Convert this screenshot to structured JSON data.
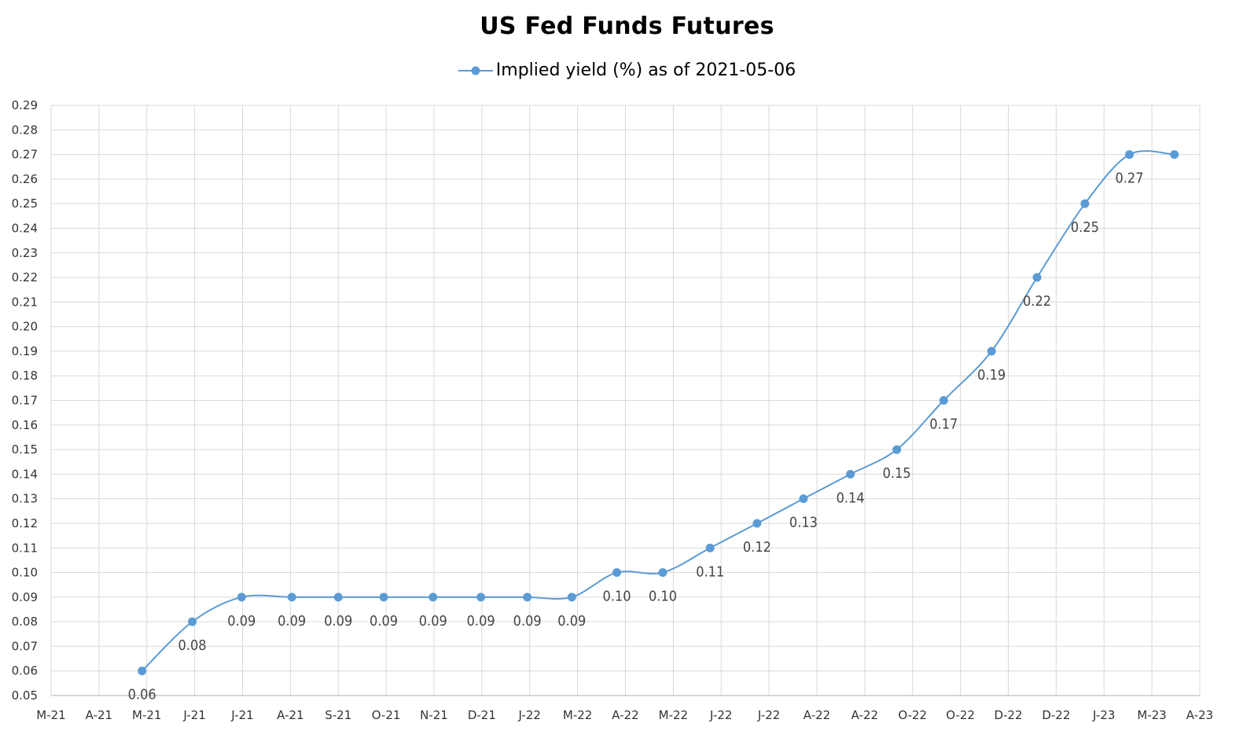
{
  "chart_data": {
    "type": "line",
    "title": "US Fed Funds Futures",
    "xlabel": "",
    "ylabel": "",
    "x_axis_labels": [
      "M-21",
      "A-21",
      "M-21",
      "J-21",
      "J-21",
      "A-21",
      "S-21",
      "O-21",
      "N-21",
      "D-21",
      "J-22",
      "M-22",
      "A-22",
      "M-22",
      "J-22",
      "J-22",
      "A-22",
      "A-22",
      "O-22",
      "O-22",
      "D-22",
      "D-22",
      "J-23",
      "M-23",
      "A-23"
    ],
    "ylim": [
      0.05,
      0.29
    ],
    "y_ticks": [
      "0.05",
      "0.06",
      "0.07",
      "0.08",
      "0.09",
      "0.10",
      "0.11",
      "0.12",
      "0.13",
      "0.14",
      "0.15",
      "0.16",
      "0.17",
      "0.18",
      "0.19",
      "0.20",
      "0.21",
      "0.22",
      "0.23",
      "0.24",
      "0.25",
      "0.26",
      "0.27",
      "0.28",
      "0.29"
    ],
    "grid": true,
    "legend_position": "top-center",
    "series": [
      {
        "name": "Implied yield (%) as of 2021-05-06",
        "color": "#5b9bd5",
        "x_index": [
          1.9,
          2.95,
          3.98,
          5.03,
          6.0,
          6.95,
          7.98,
          8.98,
          9.95,
          10.88,
          11.82,
          12.78,
          13.77,
          14.75,
          15.72,
          16.7,
          17.67,
          18.65,
          19.65,
          20.6,
          21.6,
          22.53,
          23.47
        ],
        "values": [
          0.06,
          0.08,
          0.09,
          0.09,
          0.09,
          0.09,
          0.09,
          0.09,
          0.09,
          0.09,
          0.1,
          0.1,
          0.11,
          0.12,
          0.13,
          0.14,
          0.15,
          0.17,
          0.19,
          0.22,
          0.25,
          0.27,
          0.27
        ],
        "data_labels": [
          "0.06",
          "0.08",
          "0.09",
          "0.09",
          "0.09",
          "0.09",
          "0.09",
          "0.09",
          "0.09",
          "0.09",
          "0.10",
          "0.10",
          "0.11",
          "0.12",
          "0.13",
          "0.14",
          "0.15",
          "0.17",
          "0.19",
          "0.22",
          "0.25",
          "0.27",
          ""
        ]
      }
    ]
  }
}
